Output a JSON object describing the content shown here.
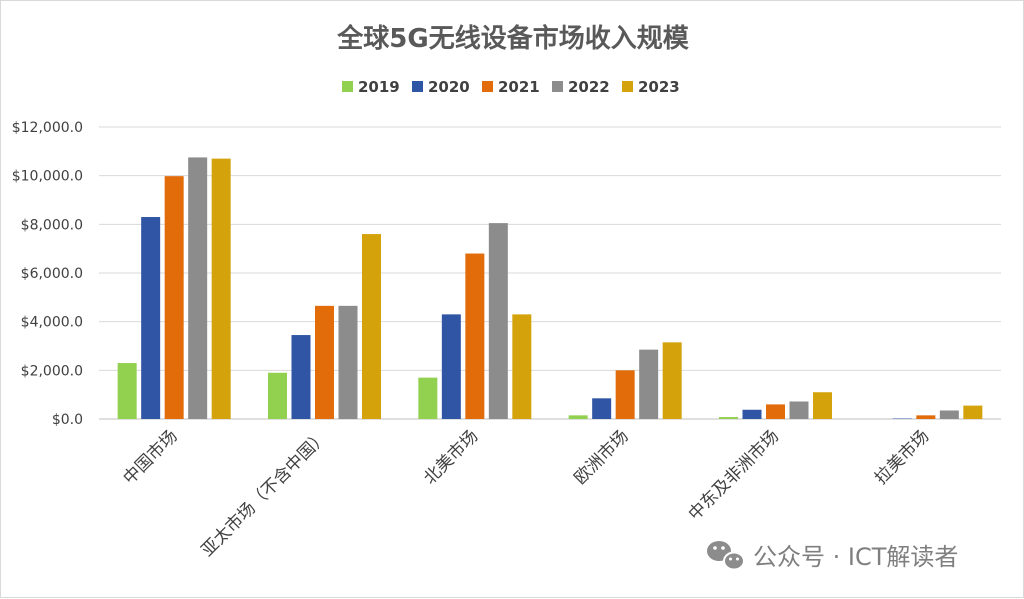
{
  "chart_data": {
    "type": "bar",
    "title": "全球5G无线设备市场收入规模",
    "xlabel": "",
    "ylabel": "",
    "ylim": [
      0,
      12000
    ],
    "yticks": [
      "$0.0",
      "$2,000.0",
      "$4,000.0",
      "$6,000.0",
      "$8,000.0",
      "$10,000.0",
      "$12,000.0"
    ],
    "grid": true,
    "legend_position": "top",
    "categories": [
      "中国市场",
      "亚太市场（不含中国）",
      "北美市场",
      "欧洲市场",
      "中东及非洲市场",
      "拉美市场"
    ],
    "series": [
      {
        "name": "2019",
        "color": "#92d050",
        "values": [
          2300,
          1900,
          1700,
          150,
          80,
          0
        ]
      },
      {
        "name": "2020",
        "color": "#2f55a4",
        "values": [
          8300,
          3450,
          4300,
          850,
          380,
          20
        ]
      },
      {
        "name": "2021",
        "color": "#e26b0a",
        "values": [
          9980,
          4650,
          6800,
          2000,
          600,
          150
        ]
      },
      {
        "name": "2022",
        "color": "#8c8c8c",
        "values": [
          10750,
          4650,
          8050,
          2850,
          720,
          350
        ]
      },
      {
        "name": "2023",
        "color": "#d4a20a",
        "values": [
          10700,
          7600,
          4300,
          3150,
          1100,
          550
        ]
      }
    ]
  },
  "watermark": {
    "text": "公众号 · ICT解读者",
    "icon": "wechat-icon"
  }
}
